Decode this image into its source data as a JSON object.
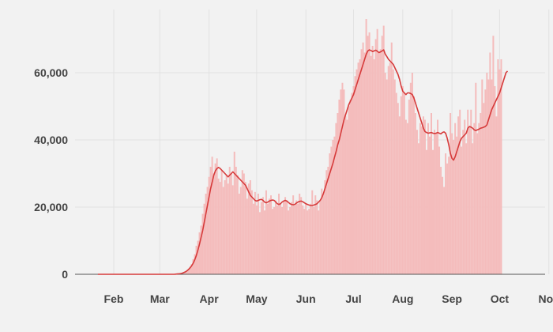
{
  "chart_data": {
    "type": "bar",
    "overlay": "line",
    "title": "",
    "xlabel": "",
    "ylabel": "",
    "ylim": [
      0,
      80000
    ],
    "grid": true,
    "legend": "none",
    "colors": {
      "bars": "#f4bcbc",
      "line": "#d63a3a",
      "axis": "#555555",
      "grid": "#e2e2e2",
      "background": "#f2f2f2"
    },
    "x_ticks": [
      {
        "label": "Feb",
        "day": 0
      },
      {
        "label": "Mar",
        "day": 29
      },
      {
        "label": "Apr",
        "day": 60
      },
      {
        "label": "May",
        "day": 90
      },
      {
        "label": "Jun",
        "day": 121
      },
      {
        "label": "Jul",
        "day": 151
      },
      {
        "label": "Aug",
        "day": 182
      },
      {
        "label": "Sep",
        "day": 213
      },
      {
        "label": "Oct",
        "day": 243
      },
      {
        "label": "Nov",
        "day": 274
      }
    ],
    "y_ticks": [
      {
        "label": "0",
        "value": 0
      },
      {
        "label": "20,000",
        "value": 20000
      },
      {
        "label": "40,000",
        "value": 40000
      },
      {
        "label": "60,000",
        "value": 60000
      }
    ],
    "series": [
      {
        "kind": "bars",
        "note": "daily values, one per day from 2020-01-22 to 2020-10-23",
        "start_date": "2020-01-22",
        "values": [
          0,
          0,
          0,
          0,
          0,
          0,
          0,
          0,
          0,
          0,
          0,
          0,
          0,
          0,
          0,
          0,
          0,
          0,
          0,
          0,
          0,
          0,
          0,
          0,
          0,
          0,
          0,
          0,
          0,
          0,
          0,
          0,
          0,
          0,
          0,
          0,
          0,
          0,
          0,
          0,
          0,
          0,
          0,
          0,
          0,
          0,
          0,
          0,
          10,
          30,
          60,
          100,
          200,
          300,
          500,
          800,
          1200,
          1600,
          2200,
          3000,
          4500,
          6000,
          8500,
          10000,
          12500,
          14500,
          18000,
          21000,
          24000,
          26000,
          29000,
          32000,
          35000,
          30000,
          33000,
          34500,
          28500,
          27500,
          31000,
          26000,
          28000,
          29500,
          27000,
          32000,
          30000,
          26500,
          36500,
          32000,
          29500,
          24000,
          26000,
          31000,
          30000,
          27500,
          22500,
          27000,
          28000,
          25000,
          21000,
          24500,
          20500,
          24000,
          18500,
          21500,
          23000,
          19000,
          25000,
          21000,
          22500,
          23500,
          19500,
          20000,
          22000,
          20500,
          24000,
          21000,
          20000,
          21500,
          23000,
          22000,
          19000,
          20000,
          21500,
          23500,
          20500,
          22000,
          21000,
          24000,
          23000,
          20500,
          19500,
          21000,
          19000,
          19500,
          21000,
          25000,
          20000,
          23500,
          22000,
          19000,
          22000,
          25500,
          24000,
          28000,
          31000,
          32000,
          36000,
          38000,
          40000,
          41000,
          45000,
          48000,
          52000,
          55000,
          57000,
          55000,
          47000,
          46000,
          50000,
          52000,
          54000,
          56000,
          59000,
          61000,
          63000,
          64000,
          67000,
          69000,
          66000,
          76000,
          71000,
          72000,
          65000,
          68000,
          64000,
          70000,
          73000,
          66000,
          67000,
          71000,
          74000,
          60000,
          58000,
          62000,
          63000,
          69000,
          61000,
          58000,
          54000,
          51000,
          47000,
          53000,
          56000,
          54000,
          46000,
          45000,
          52000,
          57000,
          60000,
          53000,
          48000,
          43000,
          39000,
          45000,
          44000,
          47000,
          46000,
          37000,
          45000,
          41000,
          48000,
          37000,
          43000,
          42000,
          46000,
          38000,
          32000,
          29000,
          26000,
          36000,
          33000,
          35000,
          48000,
          42000,
          40000,
          45000,
          41000,
          47000,
          49000,
          38000,
          43000,
          46000,
          39000,
          49000,
          44000,
          49000,
          39000,
          45000,
          57000,
          42000,
          45000,
          48000,
          58000,
          51000,
          55000,
          60000,
          58000,
          66000,
          58000,
          71000,
          56000,
          47000,
          64000,
          61000,
          64000
        ]
      },
      {
        "kind": "line",
        "note": "7-day rolling average, one per day from 2020-01-22",
        "start_date": "2020-01-22",
        "values": [
          0,
          0,
          0,
          0,
          0,
          0,
          0,
          0,
          0,
          0,
          0,
          0,
          0,
          0,
          0,
          0,
          0,
          0,
          0,
          0,
          0,
          0,
          0,
          0,
          0,
          0,
          0,
          0,
          0,
          0,
          0,
          0,
          0,
          0,
          0,
          0,
          0,
          0,
          0,
          0,
          0,
          0,
          0,
          0,
          0,
          0,
          0,
          0,
          0,
          50,
          100,
          150,
          200,
          300,
          500,
          700,
          1000,
          1400,
          1900,
          2500,
          3300,
          4300,
          5600,
          7200,
          9000,
          11000,
          13000,
          15500,
          18000,
          20500,
          23000,
          25500,
          27500,
          29500,
          30800,
          31500,
          31800,
          31500,
          31000,
          30500,
          30000,
          29500,
          29000,
          29500,
          30000,
          30500,
          30000,
          29500,
          29000,
          28500,
          28000,
          27500,
          27000,
          26500,
          25500,
          24500,
          23500,
          23000,
          22500,
          22000,
          21800,
          22000,
          22200,
          22300,
          22000,
          21500,
          21300,
          21500,
          21800,
          22000,
          22100,
          22000,
          21500,
          21000,
          20800,
          21000,
          21500,
          21800,
          22000,
          21800,
          21400,
          21000,
          20800,
          20700,
          20800,
          21200,
          21500,
          21700,
          21800,
          21600,
          21300,
          21000,
          20800,
          20600,
          20500,
          20500,
          20600,
          20800,
          21000,
          21500,
          22000,
          22800,
          24000,
          25500,
          27000,
          28500,
          30000,
          31500,
          33000,
          34800,
          36500,
          38500,
          40000,
          42000,
          44000,
          46000,
          47500,
          49000,
          50500,
          51500,
          52500,
          53500,
          55000,
          56500,
          58000,
          59500,
          61000,
          62500,
          64000,
          65500,
          66500,
          66800,
          66600,
          66300,
          66500,
          66700,
          66400,
          66000,
          66200,
          66500,
          66800,
          65500,
          64800,
          64000,
          63500,
          63000,
          62500,
          61500,
          60500,
          59500,
          58000,
          56000,
          54500,
          54000,
          53500,
          54000,
          54000,
          53800,
          53500,
          52500,
          51000,
          49500,
          48000,
          46500,
          45000,
          43500,
          42500,
          42200,
          42000,
          42100,
          42200,
          42000,
          41900,
          42000,
          42200,
          42000,
          41800,
          42200,
          42400,
          42000,
          40500,
          38500,
          36000,
          34500,
          34000,
          35000,
          36500,
          38000,
          39500,
          40500,
          41000,
          41500,
          42000,
          43500,
          44000,
          43800,
          43500,
          43000,
          42800,
          43000,
          43200,
          43500,
          43600,
          43800,
          44000,
          44500,
          46000,
          47500,
          49000,
          50000,
          51000,
          52000,
          53000,
          54000,
          55500,
          57000,
          58500,
          60000,
          60500
        ]
      }
    ]
  }
}
